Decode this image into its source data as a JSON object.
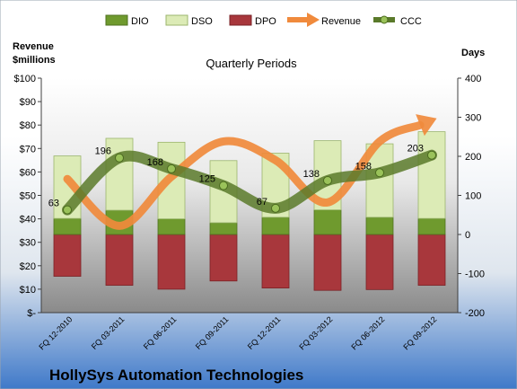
{
  "chart_data": {
    "type": "bar",
    "title": "Quarterly Periods",
    "footer_title": "HollySys Automation Technologies",
    "y_left_label_line1": "Revenue",
    "y_left_label_line2": "$millions",
    "y_right_label": "Days",
    "left_axis": {
      "min": 0,
      "max": 100,
      "step": 10,
      "tick_labels": [
        "$-",
        "$10",
        "$20",
        "$30",
        "$40",
        "$50",
        "$60",
        "$70",
        "$80",
        "$90",
        "$100"
      ]
    },
    "right_axis": {
      "min": -200,
      "max": 400,
      "step": 100,
      "tick_labels": [
        "-200",
        "-100",
        "0",
        "100",
        "200",
        "300",
        "400"
      ]
    },
    "categories": [
      "FQ 12-2010",
      "FQ 03-2011",
      "FQ 06-2011",
      "FQ 09-2011",
      "FQ 12-2011",
      "FQ 03-2012",
      "FQ 06-2012",
      "FQ 09-2012"
    ],
    "series": [
      {
        "name": "DIO",
        "axis": "right",
        "kind": "stacked-bar",
        "color": "#6f9a2e",
        "values": [
          41,
          62,
          40,
          30,
          44,
          63,
          44,
          41
        ]
      },
      {
        "name": "DSO",
        "axis": "right",
        "kind": "stacked-bar",
        "color": "#dcebb6",
        "values": [
          160,
          184,
          196,
          159,
          164,
          177,
          188,
          222
        ]
      },
      {
        "name": "DPO",
        "axis": "right",
        "kind": "negative-bar",
        "color": "#a8373c",
        "values": [
          -107,
          -130,
          -140,
          -119,
          -137,
          -143,
          -141,
          -130
        ]
      },
      {
        "name": "Revenue",
        "axis": "left",
        "kind": "line",
        "color": "#f08a3c",
        "values": [
          57,
          37,
          58,
          73,
          65,
          47,
          73,
          82
        ]
      },
      {
        "name": "CCC",
        "axis": "right",
        "kind": "line",
        "color": "#5a7a2a",
        "values": [
          63,
          196,
          168,
          125,
          67,
          138,
          158,
          203
        ],
        "labels": [
          "63",
          "196",
          "168",
          "125",
          "67",
          "138",
          "158",
          "203"
        ]
      }
    ],
    "legend": [
      "DIO",
      "DSO",
      "DPO",
      "Revenue",
      "CCC"
    ],
    "legend_position": "top",
    "grid": false
  }
}
